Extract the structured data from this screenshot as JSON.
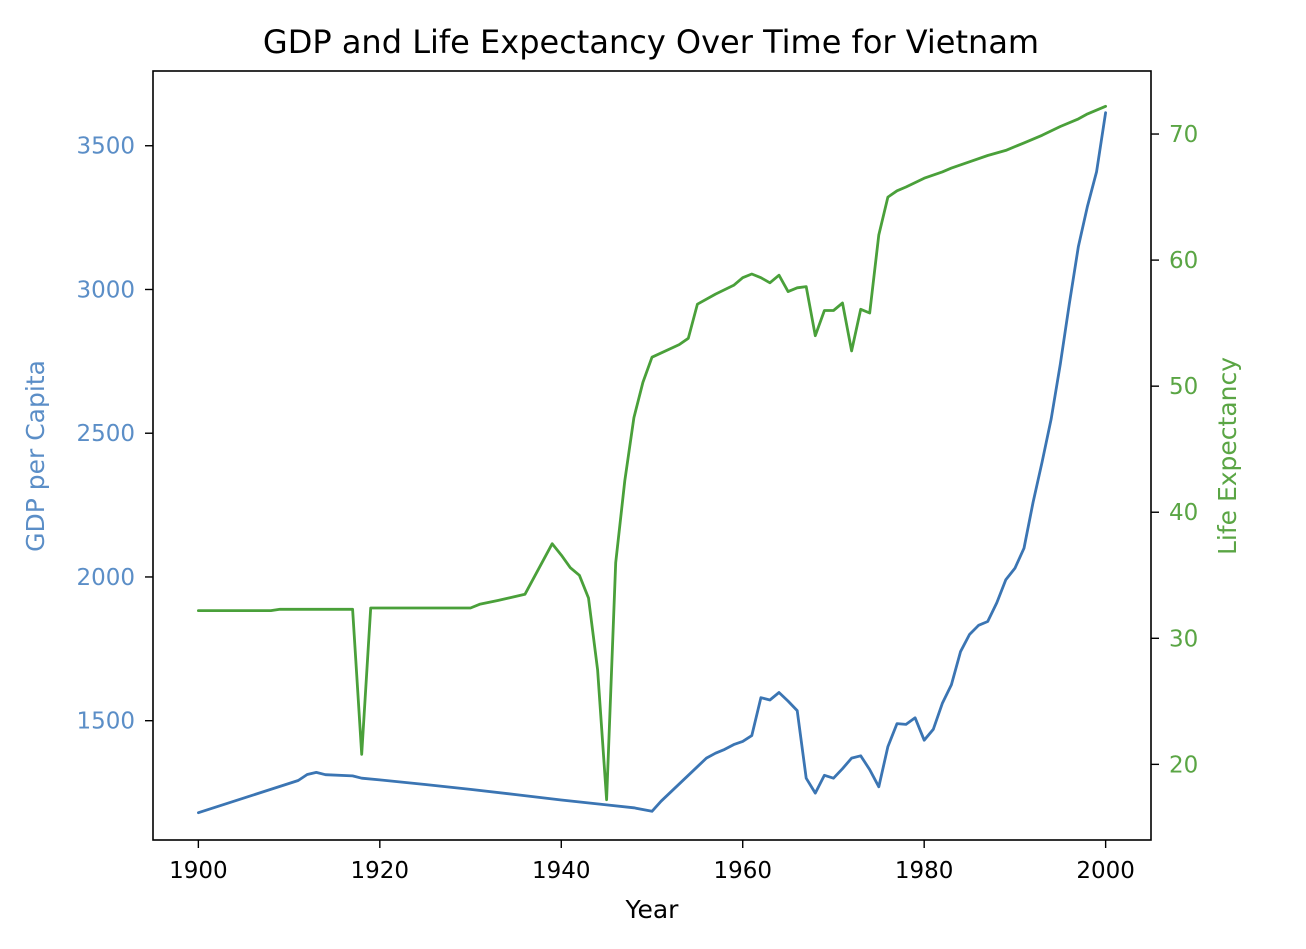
{
  "chart_data": {
    "type": "line",
    "title": "GDP and Life Expectancy Over Time for Vietnam",
    "xlabel": "Year",
    "xlim": [
      1895,
      2005
    ],
    "x_ticks": [
      1900,
      1920,
      1940,
      1960,
      1980,
      2000
    ],
    "grid": false,
    "legend": "none",
    "axes": {
      "left": {
        "label": "GDP per Capita",
        "color": "#5b8ec7",
        "ylim": [
          1085,
          3760
        ],
        "ticks": [
          1500,
          2000,
          2500,
          3000,
          3500
        ]
      },
      "right": {
        "label": "Life Expectancy",
        "color": "#5aa544",
        "ylim": [
          14,
          75
        ],
        "ticks": [
          20,
          30,
          40,
          50,
          60,
          70
        ]
      }
    },
    "series": [
      {
        "axis": "left",
        "color": "#3b75b3",
        "points": [
          [
            1900,
            1180
          ],
          [
            1911,
            1292
          ],
          [
            1912,
            1313
          ],
          [
            1913,
            1320
          ],
          [
            1914,
            1312
          ],
          [
            1917,
            1308
          ],
          [
            1918,
            1300
          ],
          [
            1920,
            1294
          ],
          [
            1925,
            1278
          ],
          [
            1930,
            1261
          ],
          [
            1935,
            1243
          ],
          [
            1940,
            1224
          ],
          [
            1945,
            1207
          ],
          [
            1948,
            1197
          ],
          [
            1950,
            1185
          ],
          [
            1951,
            1220
          ],
          [
            1955,
            1340
          ],
          [
            1956,
            1370
          ],
          [
            1957,
            1387
          ],
          [
            1958,
            1400
          ],
          [
            1959,
            1417
          ],
          [
            1960,
            1428
          ],
          [
            1961,
            1448
          ],
          [
            1962,
            1580
          ],
          [
            1963,
            1572
          ],
          [
            1964,
            1598
          ],
          [
            1965,
            1568
          ],
          [
            1966,
            1535
          ],
          [
            1967,
            1300
          ],
          [
            1968,
            1248
          ],
          [
            1969,
            1310
          ],
          [
            1970,
            1300
          ],
          [
            1971,
            1333
          ],
          [
            1972,
            1370
          ],
          [
            1973,
            1378
          ],
          [
            1974,
            1330
          ],
          [
            1975,
            1270
          ],
          [
            1976,
            1410
          ],
          [
            1977,
            1490
          ],
          [
            1978,
            1487
          ],
          [
            1979,
            1510
          ],
          [
            1980,
            1432
          ],
          [
            1981,
            1470
          ],
          [
            1982,
            1560
          ],
          [
            1983,
            1625
          ],
          [
            1984,
            1740
          ],
          [
            1985,
            1800
          ],
          [
            1986,
            1832
          ],
          [
            1987,
            1845
          ],
          [
            1988,
            1910
          ],
          [
            1989,
            1990
          ],
          [
            1990,
            2030
          ],
          [
            1991,
            2100
          ],
          [
            1992,
            2260
          ],
          [
            1993,
            2400
          ],
          [
            1994,
            2550
          ],
          [
            1995,
            2740
          ],
          [
            1996,
            2950
          ],
          [
            1997,
            3150
          ],
          [
            1998,
            3290
          ],
          [
            1999,
            3410
          ],
          [
            2000,
            3615
          ]
        ]
      },
      {
        "axis": "right",
        "color": "#4aa03a",
        "points": [
          [
            1900,
            32.2
          ],
          [
            1908,
            32.2
          ],
          [
            1909,
            32.3
          ],
          [
            1917,
            32.3
          ],
          [
            1918,
            20.8
          ],
          [
            1919,
            32.4
          ],
          [
            1930,
            32.4
          ],
          [
            1931,
            32.7
          ],
          [
            1933,
            33.0
          ],
          [
            1936,
            33.5
          ],
          [
            1939,
            37.5
          ],
          [
            1940,
            36.6
          ],
          [
            1941,
            35.6
          ],
          [
            1942,
            35.0
          ],
          [
            1943,
            33.2
          ],
          [
            1944,
            27.5
          ],
          [
            1945,
            17.2
          ],
          [
            1946,
            36.0
          ],
          [
            1947,
            42.5
          ],
          [
            1948,
            47.5
          ],
          [
            1949,
            50.3
          ],
          [
            1950,
            52.3
          ],
          [
            1953,
            53.3
          ],
          [
            1954,
            53.8
          ],
          [
            1955,
            56.5
          ],
          [
            1957,
            57.3
          ],
          [
            1959,
            58.0
          ],
          [
            1960,
            58.6
          ],
          [
            1961,
            58.9
          ],
          [
            1962,
            58.6
          ],
          [
            1963,
            58.2
          ],
          [
            1964,
            58.8
          ],
          [
            1965,
            57.5
          ],
          [
            1966,
            57.8
          ],
          [
            1967,
            57.9
          ],
          [
            1968,
            54.0
          ],
          [
            1969,
            56.0
          ],
          [
            1970,
            56.0
          ],
          [
            1971,
            56.6
          ],
          [
            1972,
            52.8
          ],
          [
            1973,
            56.1
          ],
          [
            1974,
            55.8
          ],
          [
            1975,
            62.0
          ],
          [
            1976,
            65.0
          ],
          [
            1977,
            65.5
          ],
          [
            1978,
            65.8
          ],
          [
            1980,
            66.5
          ],
          [
            1982,
            67.0
          ],
          [
            1983,
            67.3
          ],
          [
            1985,
            67.8
          ],
          [
            1987,
            68.3
          ],
          [
            1989,
            68.7
          ],
          [
            1991,
            69.3
          ],
          [
            1993,
            69.9
          ],
          [
            1995,
            70.6
          ],
          [
            1997,
            71.2
          ],
          [
            1998,
            71.6
          ],
          [
            2000,
            72.2
          ]
        ]
      }
    ]
  }
}
